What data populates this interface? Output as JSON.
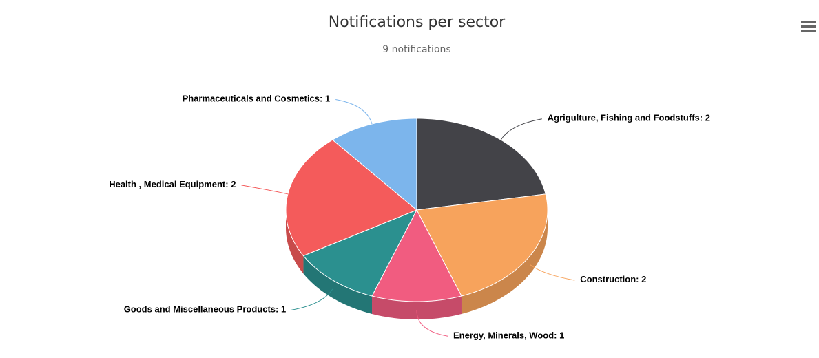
{
  "chart_data": {
    "type": "pie",
    "title": "Notifications per sector",
    "subtitle": "9 notifications",
    "categories": [
      "Agrigulture, Fishing and Foodstuffs",
      "Construction",
      "Energy, Minerals, Wood",
      "Goods and Miscellaneous Products",
      "Health , Medical Equipment",
      "Pharmaceuticals and Cosmetics"
    ],
    "values": [
      2,
      2,
      1,
      1,
      2,
      1
    ],
    "label_separator": ": ",
    "colors": [
      "#434348",
      "#f7a35c",
      "#f15c80",
      "#2b908f",
      "#f45b5b",
      "#7cb5ec"
    ]
  }
}
